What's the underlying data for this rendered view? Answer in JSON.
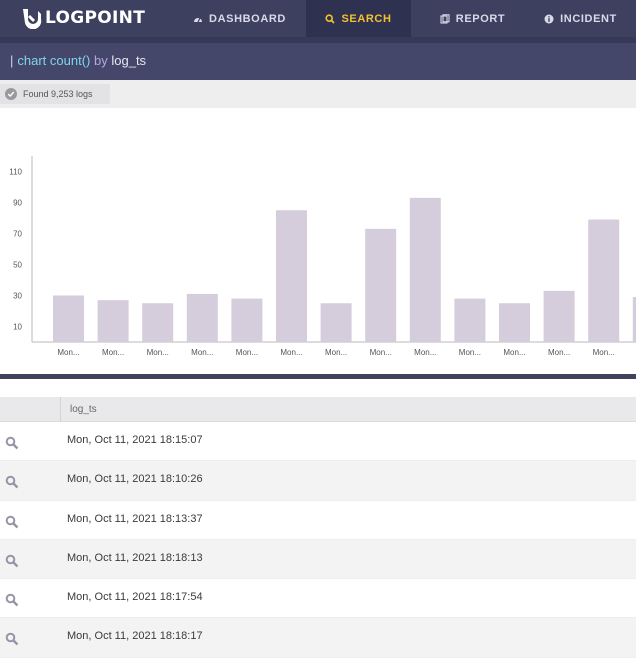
{
  "brand": {
    "name": "LOGPOINT"
  },
  "nav": [
    {
      "label": "DASHBOARD",
      "icon": "dashboard-icon",
      "active": false
    },
    {
      "label": "SEARCH",
      "icon": "search-icon",
      "active": true
    },
    {
      "label": "REPORT",
      "icon": "report-icon",
      "active": false
    },
    {
      "label": "INCIDENT",
      "icon": "info-icon",
      "active": false
    }
  ],
  "query": {
    "pipe": "|",
    "function": "chart count()",
    "keyword": "by",
    "field": "log_ts"
  },
  "status": {
    "text": "Found 9,253 logs"
  },
  "colors": {
    "accent": "#f2c230",
    "bar": "#d5ccdc",
    "nav_bg": "#3e4060"
  },
  "chart_data": {
    "type": "bar",
    "categories": [
      "Mon...",
      "Mon...",
      "Mon...",
      "Mon...",
      "Mon...",
      "Mon...",
      "Mon...",
      "Mon...",
      "Mon...",
      "Mon...",
      "Mon...",
      "Mon...",
      "Mon...",
      "Mon..."
    ],
    "values": [
      30,
      27,
      25,
      31,
      28,
      85,
      25,
      73,
      93,
      28,
      25,
      33,
      79,
      29
    ],
    "yticks": [
      10,
      30,
      50,
      70,
      90,
      110
    ],
    "ylim": [
      0,
      120
    ],
    "title": "",
    "xlabel": "",
    "ylabel": "",
    "grid": false
  },
  "table": {
    "columns": [
      "log_ts"
    ],
    "rows": [
      "Mon, Oct 11, 2021 18:15:07",
      "Mon, Oct 11, 2021 18:10:26",
      "Mon, Oct 11, 2021 18:13:37",
      "Mon, Oct 11, 2021 18:18:13",
      "Mon, Oct 11, 2021 18:17:54",
      "Mon, Oct 11, 2021 18:18:17"
    ]
  }
}
